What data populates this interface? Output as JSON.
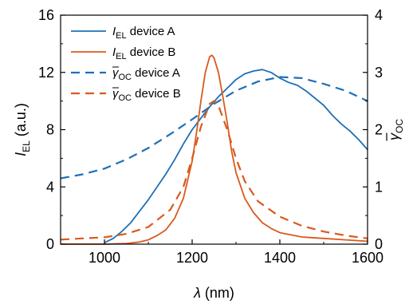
{
  "chart_data": {
    "type": "line",
    "xlabel_var": "λ",
    "xlabel_unit": " (nm)",
    "ylabel_left_main": "I",
    "ylabel_left_sub": "EL",
    "ylabel_left_unit": " (a.u.)",
    "ylabel_right_main": "γ",
    "ylabel_right_sub": "OC",
    "xlim": [
      900,
      1600
    ],
    "ylim_left": [
      0,
      16
    ],
    "ylim_right": [
      0,
      4
    ],
    "xticks": [
      1000,
      1200,
      1400,
      1600
    ],
    "yticks_left": [
      0,
      4,
      8,
      12,
      16
    ],
    "yticks_right": [
      0,
      1,
      2,
      3,
      4
    ],
    "legend_position": "top-left",
    "colors": {
      "device_a": "#1f6fb5",
      "device_b": "#d95a1e"
    },
    "series": [
      {
        "name": "I_EL device A",
        "legend_main": "I",
        "legend_sub": "EL",
        "legend_rest": " device A",
        "axis": "left",
        "style": "solid",
        "color": "#1f6fb5",
        "x": [
          1000,
          1020,
          1040,
          1060,
          1080,
          1100,
          1120,
          1140,
          1160,
          1180,
          1200,
          1220,
          1240,
          1260,
          1280,
          1300,
          1320,
          1340,
          1360,
          1380,
          1400,
          1420,
          1440,
          1460,
          1480,
          1500,
          1520,
          1540,
          1560,
          1580,
          1600
        ],
        "y": [
          0.1,
          0.4,
          0.9,
          1.5,
          2.3,
          3.1,
          4.0,
          4.9,
          5.9,
          7.0,
          8.0,
          8.8,
          9.6,
          10.3,
          10.9,
          11.5,
          11.9,
          12.1,
          12.2,
          12.0,
          11.6,
          11.3,
          11.1,
          10.7,
          10.2,
          9.7,
          9.0,
          8.4,
          7.9,
          7.3,
          6.6
        ]
      },
      {
        "name": "I_EL device B",
        "legend_main": "I",
        "legend_sub": "EL",
        "legend_rest": " device B",
        "axis": "left",
        "style": "solid",
        "color": "#d95a1e",
        "x": [
          900,
          1000,
          1050,
          1080,
          1100,
          1120,
          1140,
          1160,
          1180,
          1200,
          1210,
          1220,
          1230,
          1240,
          1245,
          1250,
          1260,
          1270,
          1280,
          1290,
          1300,
          1320,
          1340,
          1360,
          1380,
          1400,
          1450,
          1500,
          1550,
          1600
        ],
        "y": [
          0.0,
          0.0,
          0.05,
          0.15,
          0.3,
          0.6,
          1.0,
          1.8,
          3.2,
          5.8,
          7.8,
          10.0,
          12.0,
          13.1,
          13.2,
          13.0,
          12.0,
          10.3,
          8.5,
          6.5,
          5.0,
          3.2,
          2.2,
          1.5,
          1.1,
          0.8,
          0.5,
          0.4,
          0.3,
          0.2
        ]
      },
      {
        "name": "γ_OC device A",
        "legend_main": "γ",
        "legend_sub": "OC",
        "legend_rest": " device A",
        "axis": "right",
        "style": "dashed",
        "color": "#1f6fb5",
        "x": [
          900,
          950,
          1000,
          1050,
          1100,
          1150,
          1200,
          1250,
          1300,
          1350,
          1400,
          1450,
          1500,
          1550,
          1600
        ],
        "y": [
          1.15,
          1.22,
          1.32,
          1.48,
          1.68,
          1.92,
          2.18,
          2.45,
          2.68,
          2.84,
          2.92,
          2.9,
          2.8,
          2.68,
          2.5
        ]
      },
      {
        "name": "γ_OC device B",
        "legend_main": "γ",
        "legend_sub": "OC",
        "legend_rest": " device B",
        "axis": "right",
        "style": "dashed",
        "color": "#d95a1e",
        "x": [
          900,
          950,
          1000,
          1050,
          1100,
          1150,
          1180,
          1200,
          1220,
          1240,
          1250,
          1260,
          1280,
          1300,
          1320,
          1350,
          1400,
          1450,
          1500,
          1550,
          1600
        ],
        "y": [
          0.08,
          0.1,
          0.12,
          0.18,
          0.3,
          0.6,
          1.0,
          1.5,
          2.05,
          2.45,
          2.5,
          2.42,
          2.0,
          1.5,
          1.1,
          0.75,
          0.48,
          0.32,
          0.22,
          0.15,
          0.1
        ]
      }
    ]
  }
}
